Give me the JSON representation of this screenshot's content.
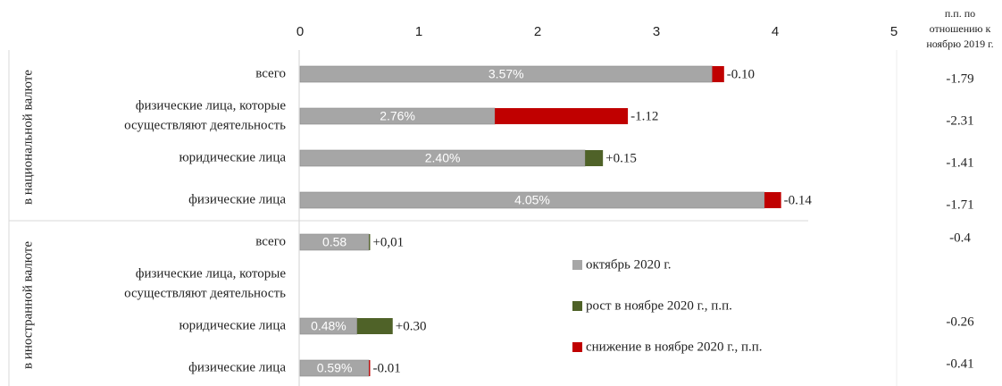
{
  "chart_data": {
    "type": "bar",
    "orientation": "horizontal",
    "stacked": true,
    "group_labels": [
      "в национальной валюте",
      "в иностранной валюте"
    ],
    "categories": [
      [
        "всего"
      ],
      [
        "физические лица, которые",
        "осуществляют деятельность"
      ],
      [
        "юридические лица"
      ],
      [
        "физические лица"
      ],
      [
        "всего"
      ],
      [
        "физические лица, которые",
        "осуществляют деятельность"
      ],
      [
        "юридические лица"
      ],
      [
        "физические лица"
      ]
    ],
    "series": [
      {
        "name": "октябрь 2020 г.",
        "color": "#a6a6a6",
        "values": [
          3.57,
          2.76,
          2.4,
          4.05,
          0.58,
          null,
          0.48,
          0.59
        ],
        "value_labels": [
          "3.57%",
          "2.76%",
          "2.40%",
          "4.05%",
          "0.58",
          null,
          "0.48%",
          "0.59%"
        ]
      },
      {
        "name": "рост в ноябре 2020 г., п.п.",
        "color": "#4f6228",
        "values": [
          null,
          null,
          0.15,
          null,
          0.01,
          null,
          0.3,
          null
        ],
        "value_labels": [
          null,
          null,
          "+0.15",
          null,
          "+0,01",
          null,
          "+0.30",
          null
        ]
      },
      {
        "name": "снижение в ноябре 2020 г., п.п.",
        "color": "#c00000",
        "values": [
          0.1,
          1.12,
          null,
          0.14,
          null,
          null,
          null,
          0.01
        ],
        "value_labels": [
          "-0.10",
          "-1.12",
          null,
          "-0.14",
          null,
          null,
          null,
          "-0.01"
        ]
      }
    ],
    "side_column": {
      "title": [
        "п.п. по",
        "отношению к",
        "ноябрю 2019 г."
      ],
      "color": "#c00000",
      "values": [
        -1.79,
        -2.31,
        -1.41,
        -1.71,
        -0.4,
        null,
        -0.26,
        -0.41
      ]
    },
    "xlim": [
      0,
      5
    ],
    "xticks": [
      0,
      1,
      2,
      3,
      4,
      5
    ]
  }
}
